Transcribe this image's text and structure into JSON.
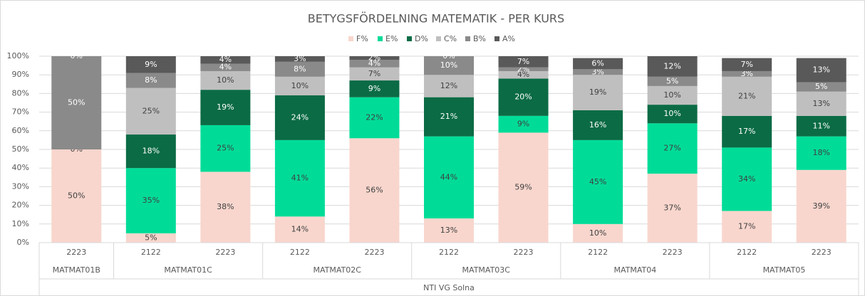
{
  "chart_data": {
    "type": "stacked_bar_100",
    "title": "BETYGSFÖRDELNING MATEMATIK - PER KURS",
    "categories": [
      "2223",
      "2122",
      "2223",
      "2122",
      "2223",
      "2122",
      "2223",
      "2122",
      "2223",
      "2122",
      "2223"
    ],
    "groups": [
      {
        "label": "MATMAT01B",
        "count": 1
      },
      {
        "label": "MATMAT01C",
        "count": 2
      },
      {
        "label": "MATMAT02C",
        "count": 2
      },
      {
        "label": "MATMAT03C",
        "count": 2
      },
      {
        "label": "MATMAT04",
        "count": 2
      },
      {
        "label": "MATMAT05",
        "count": 2
      }
    ],
    "super_group": "NTI VG Solna",
    "series": [
      {
        "name": "F%",
        "color": "#f8d6cd",
        "values": [
          50,
          5,
          38,
          14,
          56,
          13,
          59,
          10,
          37,
          17,
          39
        ],
        "value_labels": [
          "50%",
          "5%",
          "38%",
          "14%",
          "56%",
          "13%",
          "59%",
          "10%",
          "37%",
          "17%",
          "39%"
        ]
      },
      {
        "name": "E%",
        "color": "#00dc98",
        "values": [
          0,
          35,
          25,
          41,
          22,
          44,
          9,
          45,
          27,
          34,
          18
        ],
        "value_labels": [
          "0%",
          "35%",
          "25%",
          "41%",
          "22%",
          "44%",
          "9%",
          "45%",
          "27%",
          "34%",
          "18%"
        ]
      },
      {
        "name": "D%",
        "color": "#0b6b45",
        "values": [
          null,
          18,
          19,
          24,
          9,
          21,
          20,
          16,
          10,
          17,
          11
        ],
        "value_labels": [
          null,
          "18%",
          "19%",
          "24%",
          "9%",
          "21%",
          "20%",
          "16%",
          "10%",
          "17%",
          "11%"
        ]
      },
      {
        "name": "C%",
        "color": "#bfbfbf",
        "values": [
          null,
          25,
          10,
          10,
          7,
          12,
          4,
          19,
          10,
          21,
          13
        ],
        "value_labels": [
          null,
          "25%",
          "10%",
          "10%",
          "7%",
          "12%",
          "4%",
          "19%",
          "10%",
          "21%",
          "13%"
        ]
      },
      {
        "name": "B%",
        "color": "#8a8a8a",
        "values": [
          50,
          8,
          4,
          8,
          4,
          10,
          2,
          3,
          5,
          3,
          5
        ],
        "value_labels": [
          "50%",
          "8%",
          "4%",
          "8%",
          "4%",
          "10%",
          "2%",
          "3%",
          "5%",
          "3%",
          "5%"
        ]
      },
      {
        "name": "A%",
        "color": "#595959",
        "values": [
          0,
          9,
          4,
          3,
          2,
          0,
          7,
          6,
          12,
          7,
          13
        ],
        "value_labels": [
          "0%",
          "9%",
          "4%",
          "3%",
          "2%",
          "0%",
          "7%",
          "6%",
          "12%",
          "7%",
          "13%"
        ]
      }
    ],
    "ylim": [
      0,
      100
    ],
    "yticks": [
      {
        "value": 0,
        "label": "0%"
      },
      {
        "value": 10,
        "label": "10%"
      },
      {
        "value": 20,
        "label": "20%"
      },
      {
        "value": 30,
        "label": "30%"
      },
      {
        "value": 40,
        "label": "40%"
      },
      {
        "value": 50,
        "label": "50%"
      },
      {
        "value": 60,
        "label": "60%"
      },
      {
        "value": 70,
        "label": "70%"
      },
      {
        "value": 80,
        "label": "80%"
      },
      {
        "value": 90,
        "label": "90%"
      },
      {
        "value": 100,
        "label": "100%"
      }
    ],
    "grid": true,
    "legend": "top"
  }
}
